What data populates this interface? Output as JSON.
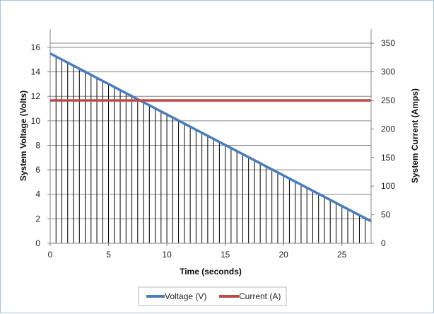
{
  "chart_data": {
    "type": "line",
    "title": "",
    "xlabel": "Time (seconds)",
    "ylabel": "System Voltage (Volts)",
    "y2label": "System Current  (Amps)",
    "xlim": [
      0,
      27.5
    ],
    "ylim": [
      0,
      17.5
    ],
    "y2lim": [
      0,
      375
    ],
    "x_ticks": [
      0,
      5,
      10,
      15,
      20,
      25
    ],
    "y_ticks": [
      0,
      2,
      4,
      6,
      8,
      10,
      12,
      14,
      16
    ],
    "y2_ticks": [
      0,
      50,
      100,
      150,
      200,
      250,
      300,
      350
    ],
    "grid": true,
    "legend_position": "bottom",
    "drop_line_interval_seconds": 0.5,
    "series": [
      {
        "name": "Voltage (V)",
        "axis": "left",
        "color": "#4a7ebb",
        "x": [
          0,
          27.5
        ],
        "values": [
          15.5,
          1.8
        ]
      },
      {
        "name": "Current (A)",
        "axis": "right",
        "color": "#be4b48",
        "x": [
          0,
          27.5
        ],
        "values": [
          250,
          250
        ]
      }
    ]
  }
}
